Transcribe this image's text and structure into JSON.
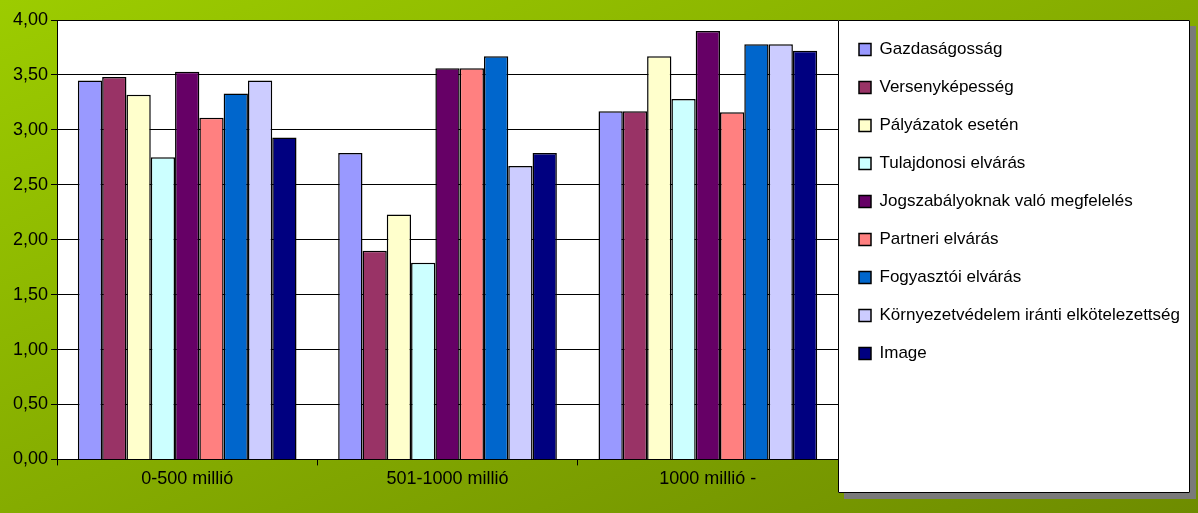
{
  "chart_data": {
    "type": "bar",
    "categories": [
      "0-500 millió",
      "501-1000 millió",
      "1000 millió -"
    ],
    "series": [
      {
        "name": "Gazdaságosság",
        "color": "#9999ff",
        "values": [
          3.45,
          2.79,
          3.17
        ]
      },
      {
        "name": "Versenyképesség",
        "color": "#993366",
        "values": [
          3.48,
          1.9,
          3.17
        ]
      },
      {
        "name": "Pályázatok esetén",
        "color": "#ffffcc",
        "values": [
          3.32,
          2.23,
          3.67
        ]
      },
      {
        "name": "Tulajdonosi elvárás",
        "color": "#ccffff",
        "values": [
          2.75,
          1.79,
          3.28
        ]
      },
      {
        "name": "Jogszabályoknak való megfelelés",
        "color": "#660066",
        "values": [
          3.53,
          3.56,
          3.9
        ]
      },
      {
        "name": "Partneri elvárás",
        "color": "#ff8080",
        "values": [
          3.11,
          3.56,
          3.16
        ]
      },
      {
        "name": "Fogyasztói elvárás",
        "color": "#0066cc",
        "values": [
          3.33,
          3.67,
          3.78
        ]
      },
      {
        "name": "Környezetvédelem iránti elkötelezettség",
        "color": "#ccccff",
        "values": [
          3.45,
          2.67,
          3.78
        ]
      },
      {
        "name": "Image",
        "color": "#000080",
        "values": [
          2.93,
          2.79,
          3.72
        ]
      }
    ],
    "ylim": [
      0,
      4
    ],
    "yticks": [
      {
        "value": 0,
        "label": "0,00"
      },
      {
        "value": 0.5,
        "label": "0,50"
      },
      {
        "value": 1,
        "label": "1,00"
      },
      {
        "value": 1.5,
        "label": "1,50"
      },
      {
        "value": 2,
        "label": "2,00"
      },
      {
        "value": 2.5,
        "label": "2,50"
      },
      {
        "value": 3,
        "label": "3,00"
      },
      {
        "value": 3.5,
        "label": "3,50"
      },
      {
        "value": 4,
        "label": "4,00"
      }
    ],
    "grid": "y",
    "legend": "right"
  }
}
